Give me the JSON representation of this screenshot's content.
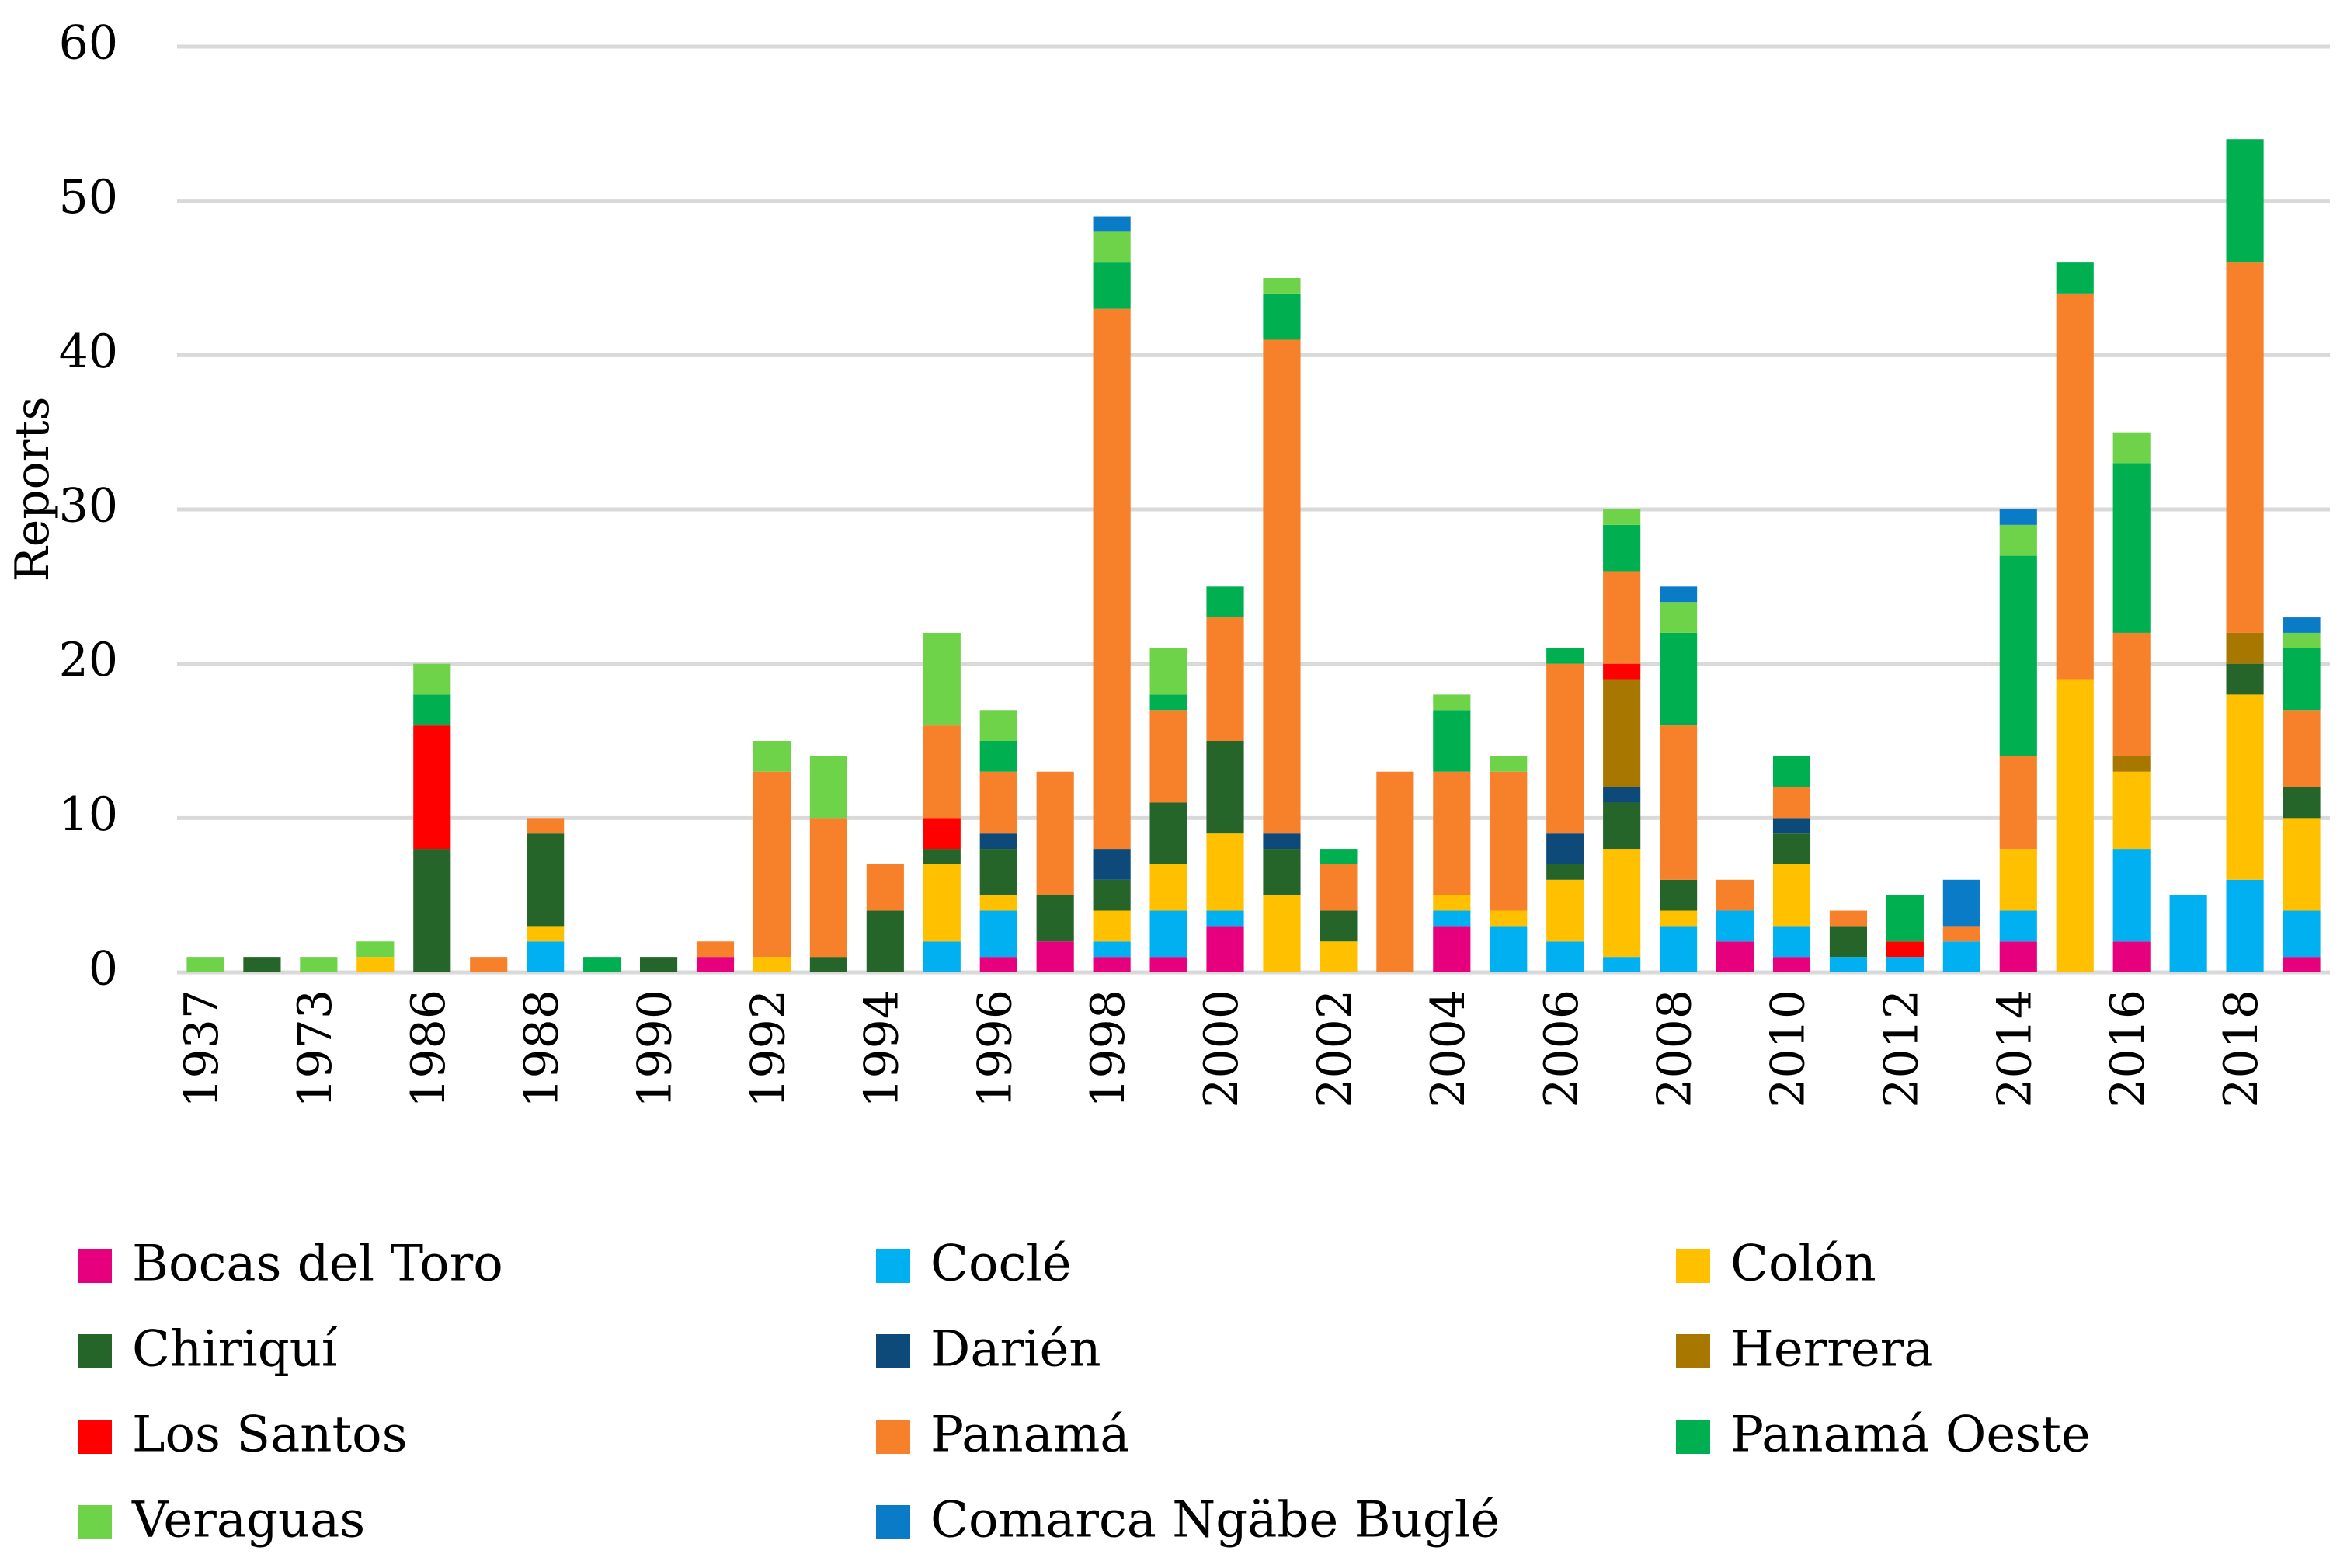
{
  "chart_data": {
    "type": "bar",
    "stacked": true,
    "title": "",
    "xlabel": "",
    "ylabel": "Reports",
    "ylim": [
      0,
      60
    ],
    "yticks": [
      0,
      10,
      20,
      30,
      40,
      50,
      60
    ],
    "grid": true,
    "legend_position": "bottom",
    "categories": [
      "1937",
      "1965",
      "1973",
      "1982",
      "1986",
      "1987",
      "1988",
      "1989",
      "1990",
      "1991",
      "1992",
      "1993",
      "1994",
      "1995",
      "1996",
      "1997",
      "1998",
      "1999",
      "2000",
      "2001",
      "2002",
      "2003",
      "2004",
      "2005",
      "2006",
      "2007",
      "2008",
      "2009",
      "2010",
      "2011",
      "2012",
      "2013",
      "2014",
      "2015",
      "2016",
      "2017",
      "2018",
      "2019"
    ],
    "category_tick_labels": [
      "1937",
      "",
      "1973",
      "",
      "1986",
      "",
      "1988",
      "",
      "1990",
      "",
      "1992",
      "",
      "1994",
      "",
      "1996",
      "",
      "1998",
      "",
      "2000",
      "",
      "2002",
      "",
      "2004",
      "",
      "2006",
      "",
      "2008",
      "",
      "2010",
      "",
      "2012",
      "",
      "2014",
      "",
      "2016",
      "",
      "2018",
      ""
    ],
    "series": [
      {
        "name": "Bocas del Toro",
        "color": "#E6007E",
        "values": [
          0,
          0,
          0,
          0,
          0,
          0,
          0,
          0,
          0,
          1,
          0,
          0,
          0,
          0,
          1,
          2,
          1,
          1,
          3,
          0,
          0,
          0,
          3,
          0,
          0,
          0,
          0,
          2,
          1,
          0,
          0,
          0,
          2,
          0,
          2,
          0,
          0,
          1
        ]
      },
      {
        "name": "Coclé",
        "color": "#00B0F0",
        "values": [
          0,
          0,
          0,
          0,
          0,
          0,
          2,
          0,
          0,
          0,
          0,
          0,
          0,
          2,
          3,
          0,
          1,
          3,
          1,
          0,
          0,
          0,
          1,
          3,
          2,
          1,
          3,
          2,
          2,
          1,
          1,
          2,
          2,
          0,
          6,
          5,
          6,
          3
        ]
      },
      {
        "name": "Colón",
        "color": "#FFC000",
        "values": [
          0,
          0,
          0,
          1,
          0,
          0,
          1,
          0,
          0,
          0,
          1,
          0,
          0,
          5,
          1,
          0,
          2,
          3,
          5,
          5,
          2,
          0,
          1,
          1,
          4,
          7,
          1,
          0,
          4,
          0,
          0,
          0,
          4,
          19,
          5,
          0,
          12,
          6
        ]
      },
      {
        "name": "Chiriquí",
        "color": "#25652A",
        "values": [
          0,
          1,
          0,
          0,
          8,
          0,
          6,
          0,
          1,
          0,
          0,
          1,
          4,
          1,
          3,
          3,
          2,
          4,
          6,
          3,
          2,
          0,
          0,
          0,
          1,
          3,
          2,
          0,
          2,
          2,
          0,
          0,
          0,
          0,
          0,
          0,
          2,
          2
        ]
      },
      {
        "name": "Darién",
        "color": "#0D4A7A",
        "values": [
          0,
          0,
          0,
          0,
          0,
          0,
          0,
          0,
          0,
          0,
          0,
          0,
          0,
          0,
          1,
          0,
          2,
          0,
          0,
          1,
          0,
          0,
          0,
          0,
          2,
          1,
          0,
          0,
          1,
          0,
          0,
          0,
          0,
          0,
          0,
          0,
          0,
          0
        ]
      },
      {
        "name": "Herrera",
        "color": "#A87700",
        "values": [
          0,
          0,
          0,
          0,
          0,
          0,
          0,
          0,
          0,
          0,
          0,
          0,
          0,
          0,
          0,
          0,
          0,
          0,
          0,
          0,
          0,
          0,
          0,
          0,
          0,
          7,
          0,
          0,
          0,
          0,
          0,
          0,
          0,
          0,
          1,
          0,
          2,
          0
        ]
      },
      {
        "name": "Los Santos",
        "color": "#FF0000",
        "values": [
          0,
          0,
          0,
          0,
          8,
          0,
          0,
          0,
          0,
          0,
          0,
          0,
          0,
          2,
          0,
          0,
          0,
          0,
          0,
          0,
          0,
          0,
          0,
          0,
          0,
          1,
          0,
          0,
          0,
          0,
          1,
          0,
          0,
          0,
          0,
          0,
          0,
          0
        ]
      },
      {
        "name": "Panamá",
        "color": "#F7802A",
        "values": [
          0,
          0,
          0,
          0,
          0,
          1,
          1,
          0,
          0,
          1,
          12,
          9,
          3,
          6,
          4,
          8,
          35,
          6,
          8,
          32,
          3,
          13,
          8,
          9,
          11,
          6,
          10,
          2,
          2,
          1,
          0,
          1,
          6,
          25,
          8,
          0,
          24,
          5
        ]
      },
      {
        "name": "Panamá Oeste",
        "color": "#00B050",
        "values": [
          0,
          0,
          0,
          0,
          2,
          0,
          0,
          1,
          0,
          0,
          0,
          0,
          0,
          0,
          2,
          0,
          3,
          1,
          2,
          3,
          1,
          0,
          4,
          0,
          1,
          3,
          6,
          0,
          2,
          0,
          3,
          0,
          13,
          2,
          11,
          0,
          8,
          4
        ]
      },
      {
        "name": "Veraguas",
        "color": "#6FD34A",
        "values": [
          1,
          0,
          1,
          1,
          2,
          0,
          0,
          0,
          0,
          0,
          2,
          4,
          0,
          6,
          2,
          0,
          2,
          3,
          0,
          1,
          0,
          0,
          1,
          1,
          0,
          1,
          2,
          0,
          0,
          0,
          0,
          0,
          2,
          0,
          2,
          0,
          0,
          1
        ]
      },
      {
        "name": "Comarca Ngäbe Buglé",
        "color": "#0A7CC7",
        "values": [
          0,
          0,
          0,
          0,
          0,
          0,
          0,
          0,
          0,
          0,
          0,
          0,
          0,
          0,
          0,
          0,
          1,
          0,
          0,
          0,
          0,
          0,
          0,
          0,
          0,
          0,
          1,
          0,
          0,
          0,
          0,
          3,
          1,
          0,
          0,
          0,
          0,
          1
        ]
      }
    ]
  }
}
